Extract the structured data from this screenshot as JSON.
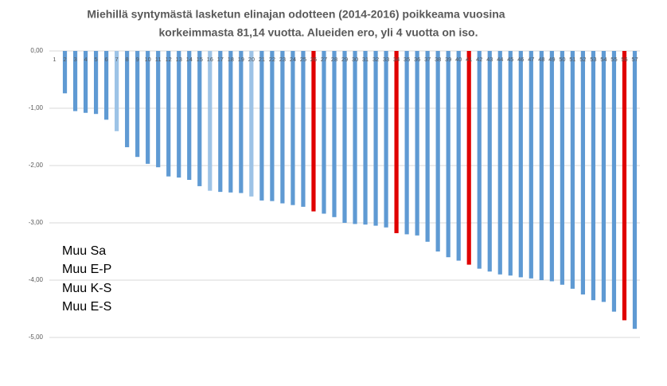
{
  "chart_data": {
    "type": "bar",
    "title": [
      "Miehillä  syntymästä lasketun elinajan  odotteen (2014-2016)  poikkeama vuosina",
      "korkeimmasta 81,14 vuotta. Alueiden ero, yli 4 vuotta on iso."
    ],
    "categories": [
      "1",
      "2",
      "3",
      "4",
      "5",
      "6",
      "7",
      "8",
      "9",
      "10",
      "11",
      "12",
      "13",
      "14",
      "15",
      "16",
      "17",
      "18",
      "19",
      "20",
      "21",
      "22",
      "23",
      "24",
      "25",
      "26",
      "27",
      "28",
      "29",
      "30",
      "31",
      "32",
      "33",
      "34",
      "35",
      "36",
      "37",
      "38",
      "39",
      "40",
      "41",
      "42",
      "43",
      "44",
      "45",
      "46",
      "47",
      "48",
      "49",
      "50",
      "51",
      "52",
      "53",
      "54",
      "55",
      "56",
      "57"
    ],
    "values": [
      0,
      -0.74,
      -1.05,
      -1.08,
      -1.1,
      -1.2,
      -1.4,
      -1.68,
      -1.85,
      -1.97,
      -2.03,
      -2.19,
      -2.21,
      -2.25,
      -2.36,
      -2.44,
      -2.46,
      -2.47,
      -2.48,
      -2.54,
      -2.61,
      -2.62,
      -2.66,
      -2.69,
      -2.72,
      -2.8,
      -2.84,
      -2.9,
      -3.0,
      -3.02,
      -3.03,
      -3.05,
      -3.08,
      -3.18,
      -3.2,
      -3.22,
      -3.33,
      -3.5,
      -3.6,
      -3.66,
      -3.73,
      -3.8,
      -3.85,
      -3.9,
      -3.92,
      -3.95,
      -3.97,
      -4.0,
      -4.02,
      -4.08,
      -4.15,
      -4.25,
      -4.35,
      -4.38,
      -4.55,
      -4.7,
      -4.85
    ],
    "colors": [
      "#5f9ad3",
      "#5f9ad3",
      "#5f9ad3",
      "#5f9ad3",
      "#5f9ad3",
      "#5f9ad3",
      "#9dc3e6",
      "#5f9ad3",
      "#5f9ad3",
      "#5f9ad3",
      "#5f9ad3",
      "#5f9ad3",
      "#5f9ad3",
      "#5f9ad3",
      "#5f9ad3",
      "#9dc3e6",
      "#5f9ad3",
      "#5f9ad3",
      "#5f9ad3",
      "#9dc3e6",
      "#5f9ad3",
      "#5f9ad3",
      "#5f9ad3",
      "#5f9ad3",
      "#5f9ad3",
      "#e00000",
      "#5f9ad3",
      "#5f9ad3",
      "#5f9ad3",
      "#5f9ad3",
      "#5f9ad3",
      "#5f9ad3",
      "#5f9ad3",
      "#e00000",
      "#5f9ad3",
      "#5f9ad3",
      "#5f9ad3",
      "#5f9ad3",
      "#5f9ad3",
      "#5f9ad3",
      "#e00000",
      "#5f9ad3",
      "#5f9ad3",
      "#5f9ad3",
      "#5f9ad3",
      "#5f9ad3",
      "#5f9ad3",
      "#5f9ad3",
      "#5f9ad3",
      "#5f9ad3",
      "#5f9ad3",
      "#5f9ad3",
      "#5f9ad3",
      "#5f9ad3",
      "#5f9ad3",
      "#e00000",
      "#5f9ad3"
    ],
    "ylim": [
      -5,
      0
    ],
    "yticks": [
      {
        "value": 0,
        "label": "0,00"
      },
      {
        "value": -1,
        "label": "-1,00"
      },
      {
        "value": -2,
        "label": "-2,00"
      },
      {
        "value": -3,
        "label": "-3,00"
      },
      {
        "value": -4,
        "label": "-4,00"
      },
      {
        "value": -5,
        "label": "-5,00"
      }
    ],
    "grid": true,
    "annotations": [
      "Muu Sa",
      "Muu E-P",
      "Muu K-S",
      "Muu E-S"
    ]
  }
}
